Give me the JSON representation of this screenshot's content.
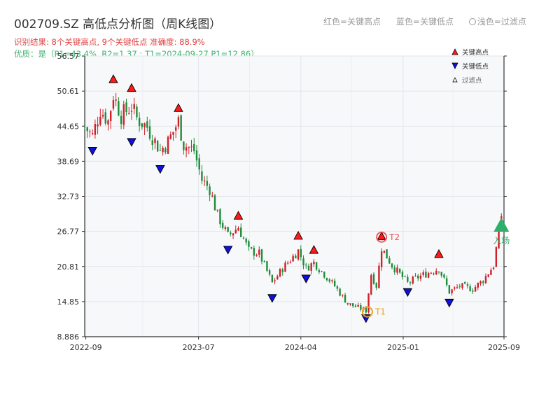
{
  "header": {
    "title": "002709.SZ 高低点分析图（周K线图）",
    "result_line": "识别结果: 8个关键高点, 9个关键低点  准确度: 88.9%",
    "quality_line": "优质：是（P1=43.4%, R2=1.37 ; T1=2024-09-27 P1=12.86）",
    "top_legend": {
      "red": "红色=关键高点",
      "blue": "蓝色=关键低点",
      "light": "浅色=过滤点"
    }
  },
  "legend": {
    "high": "关键高点",
    "low": "关键低点",
    "filtered": "过滤点"
  },
  "colors": {
    "up": "#d0202a",
    "down": "#1e8c3a",
    "high_marker": "#ff1a1a",
    "low_marker": "#1010dd",
    "t1": "#f0a020",
    "t2": "#f05050",
    "entry": "#2fae6a",
    "plot_bg": "#f7f8fa"
  },
  "chart_data": {
    "type": "candlestick",
    "title": "002709.SZ 高低点分析图（周K线图）",
    "x_tick_labels": [
      "2022-09",
      "2023-07",
      "2024-04",
      "2025-01",
      "2025-09"
    ],
    "y_tick_labels": [
      "8.886",
      "14.85",
      "20.81",
      "26.77",
      "32.73",
      "38.69",
      "44.65",
      "50.61",
      "56.57"
    ],
    "ylim": [
      8.886,
      56.57
    ],
    "x_range": [
      "2022-08-29",
      "2025-09-29"
    ],
    "grid": true,
    "legend_position": "top-right",
    "key_highs": [
      {
        "date": "2022-11-14",
        "price": 51.8
      },
      {
        "date": "2023-01-02",
        "price": 50.3
      },
      {
        "date": "2023-05-08",
        "price": 46.9
      },
      {
        "date": "2023-10-16",
        "price": 28.6
      },
      {
        "date": "2024-03-25",
        "price": 25.2
      },
      {
        "date": "2024-05-06",
        "price": 22.8
      },
      {
        "date": "2024-11-04",
        "price": 25.1
      },
      {
        "date": "2025-04-07",
        "price": 22.1
      }
    ],
    "key_lows": [
      {
        "date": "2022-09-19",
        "price": 41.3
      },
      {
        "date": "2023-01-02",
        "price": 42.8
      },
      {
        "date": "2023-03-20",
        "price": 38.2
      },
      {
        "date": "2023-09-18",
        "price": 24.5
      },
      {
        "date": "2024-01-15",
        "price": 16.3
      },
      {
        "date": "2024-04-15",
        "price": 19.6
      },
      {
        "date": "2024-09-23",
        "price": 12.86
      },
      {
        "date": "2025-01-13",
        "price": 17.3
      },
      {
        "date": "2025-05-05",
        "price": 15.5
      }
    ],
    "annotations": [
      {
        "label": "T1",
        "date": "2024-09-27",
        "price": 12.86
      },
      {
        "label": "T2",
        "date": "2024-11-04",
        "price": 25.8
      },
      {
        "label": "入场",
        "date": "2025-09-22",
        "price": 27.8
      }
    ],
    "weekly_close_path": [
      [
        "2022-08-29",
        44.5
      ],
      [
        "2022-09-19",
        43.0
      ],
      [
        "2022-10-10",
        47.5
      ],
      [
        "2022-10-31",
        45.5
      ],
      [
        "2022-11-14",
        50.0
      ],
      [
        "2022-12-05",
        46.5
      ],
      [
        "2023-01-02",
        48.0
      ],
      [
        "2023-01-16",
        46.0
      ],
      [
        "2023-02-13",
        44.5
      ],
      [
        "2023-03-20",
        40.5
      ],
      [
        "2023-04-10",
        42.0
      ],
      [
        "2023-05-08",
        45.5
      ],
      [
        "2023-05-22",
        41.5
      ],
      [
        "2023-06-19",
        40.5
      ],
      [
        "2023-07-10",
        35.5
      ],
      [
        "2023-07-31",
        34.0
      ],
      [
        "2023-08-21",
        29.5
      ],
      [
        "2023-09-18",
        26.0
      ],
      [
        "2023-10-16",
        27.5
      ],
      [
        "2023-11-13",
        23.5
      ],
      [
        "2023-12-11",
        23.0
      ],
      [
        "2024-01-15",
        18.0
      ],
      [
        "2024-02-12",
        20.5
      ],
      [
        "2024-03-25",
        23.5
      ],
      [
        "2024-04-15",
        20.5
      ],
      [
        "2024-05-06",
        21.5
      ],
      [
        "2024-06-03",
        19.5
      ],
      [
        "2024-07-01",
        17.5
      ],
      [
        "2024-08-05",
        14.5
      ],
      [
        "2024-09-23",
        13.3
      ],
      [
        "2024-10-07",
        19.5
      ],
      [
        "2024-10-21",
        17.5
      ],
      [
        "2024-11-04",
        24.0
      ],
      [
        "2024-12-02",
        21.0
      ],
      [
        "2025-01-13",
        18.0
      ],
      [
        "2025-02-10",
        19.0
      ],
      [
        "2025-04-07",
        20.5
      ],
      [
        "2025-05-05",
        16.5
      ],
      [
        "2025-06-02",
        17.5
      ],
      [
        "2025-07-07",
        17.0
      ],
      [
        "2025-08-04",
        18.5
      ],
      [
        "2025-09-01",
        21.0
      ],
      [
        "2025-09-22",
        29.5
      ]
    ]
  }
}
